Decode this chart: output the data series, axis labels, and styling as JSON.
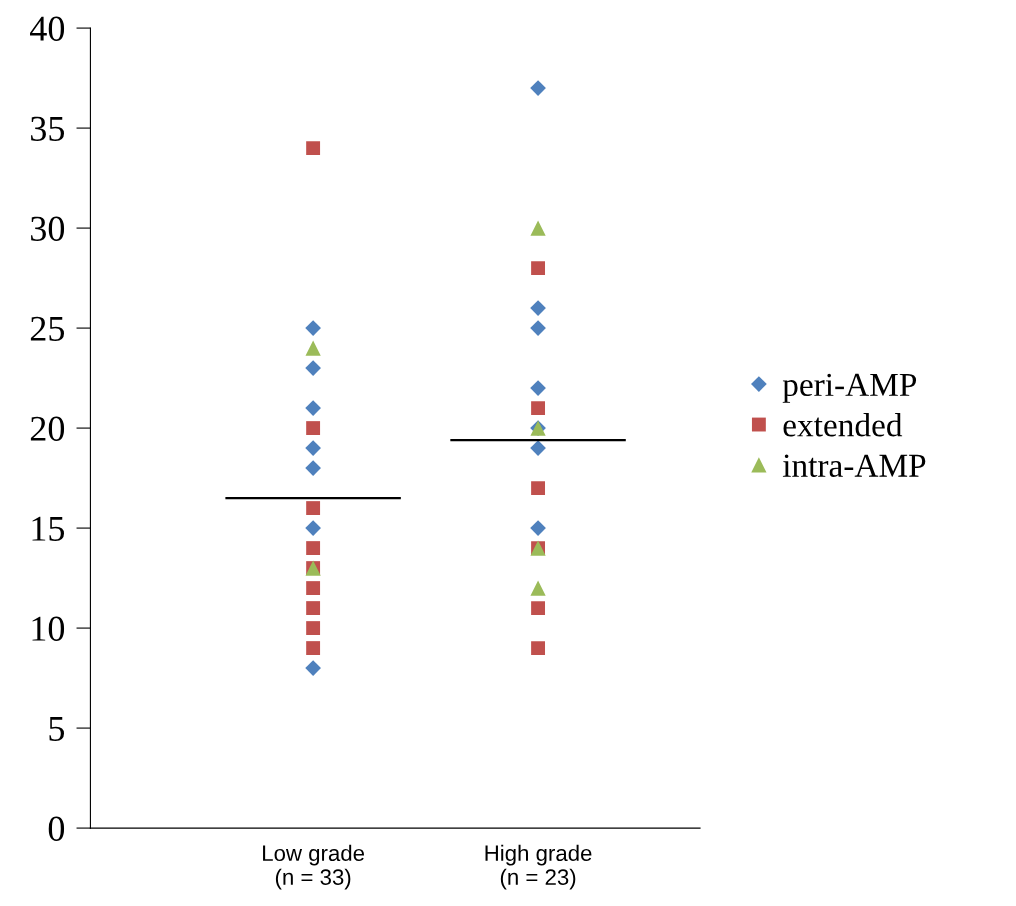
{
  "chart_data": {
    "type": "scatter",
    "categories": [
      "Low grade\n(n = 33)",
      "High grade\n(n = 23)"
    ],
    "series": [
      {
        "name": "peri-AMP",
        "color": "#4f81bd",
        "marker": "diamond",
        "x": [
          "Low grade\n(n = 33)",
          "Low grade\n(n = 33)",
          "Low grade\n(n = 33)",
          "Low grade\n(n = 33)",
          "Low grade\n(n = 33)",
          "Low grade\n(n = 33)",
          "Low grade\n(n = 33)",
          "High grade\n(n = 23)",
          "High grade\n(n = 23)",
          "High grade\n(n = 23)",
          "High grade\n(n = 23)",
          "High grade\n(n = 23)",
          "High grade\n(n = 23)",
          "High grade\n(n = 23)"
        ],
        "values": [
          25,
          23,
          21,
          19,
          18,
          15,
          8,
          37,
          26,
          25,
          22,
          20,
          19,
          15
        ]
      },
      {
        "name": "extended",
        "color": "#c0504d",
        "marker": "square",
        "x": [
          "Low grade\n(n = 33)",
          "Low grade\n(n = 33)",
          "Low grade\n(n = 33)",
          "Low grade\n(n = 33)",
          "Low grade\n(n = 33)",
          "Low grade\n(n = 33)",
          "Low grade\n(n = 33)",
          "Low grade\n(n = 33)",
          "Low grade\n(n = 33)",
          "High grade\n(n = 23)",
          "High grade\n(n = 23)",
          "High grade\n(n = 23)",
          "High grade\n(n = 23)",
          "High grade\n(n = 23)",
          "High grade\n(n = 23)"
        ],
        "values": [
          34,
          20,
          16,
          14,
          13,
          12,
          11,
          10,
          9,
          28,
          21,
          17,
          14,
          11,
          9
        ]
      },
      {
        "name": "intra-AMP",
        "color": "#9bbb59",
        "marker": "triangle",
        "x": [
          "Low grade\n(n = 33)",
          "Low grade\n(n = 33)",
          "High grade\n(n = 23)",
          "High grade\n(n = 23)",
          "High grade\n(n = 23)",
          "High grade\n(n = 23)"
        ],
        "values": [
          24,
          13,
          30,
          20,
          14,
          12
        ]
      }
    ],
    "ref_lines": [
      {
        "axis": "y",
        "value": 16.5,
        "color": "#000000"
      },
      {
        "axis": "y",
        "value": 19.4,
        "color": "#000000"
      }
    ],
    "ylim": [
      0,
      40
    ],
    "yticks": [
      0,
      5,
      10,
      15,
      20,
      25,
      30,
      35,
      40
    ],
    "grid": false,
    "legend": "right"
  }
}
